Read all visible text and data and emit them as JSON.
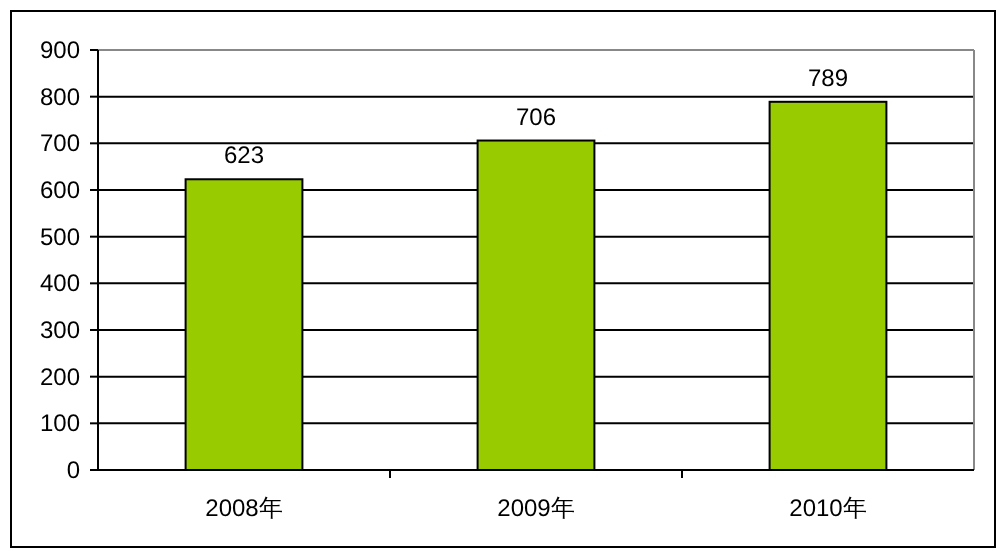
{
  "chart_data": {
    "type": "bar",
    "categories": [
      "2008年",
      "2009年",
      "2010年"
    ],
    "values": [
      623,
      706,
      789
    ],
    "color": "#99cc00",
    "ylim": [
      0,
      900
    ],
    "yticks": [
      0,
      100,
      200,
      300,
      400,
      500,
      600,
      700,
      800,
      900
    ],
    "grid": "y",
    "data_labels": true
  }
}
